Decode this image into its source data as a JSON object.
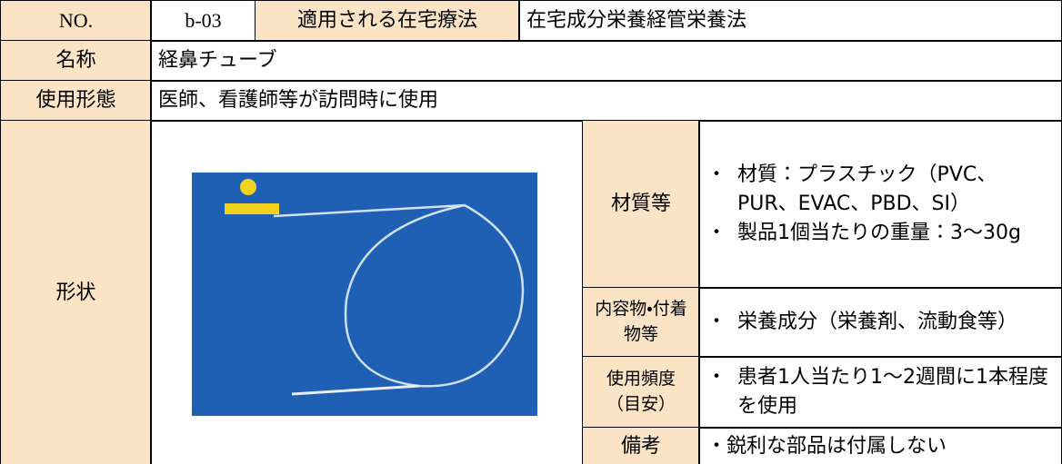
{
  "header": {
    "no_label": "NO.",
    "no": "b-03",
    "therapy_label": "適用される在宅療法",
    "therapy": "在宅成分栄養経管栄養法"
  },
  "rows": [
    {
      "label": "名称",
      "value": "経鼻チューブ"
    },
    {
      "label": "使用形態",
      "value": "医師、看護師等が訪問時に使用"
    }
  ],
  "shape": {
    "label": "形状",
    "details": [
      {
        "label": "材質等",
        "items": [
          "材質：プラスチック（PVC、PUR、EVAC、PBD、SI）",
          "製品1個当たりの重量：3～30g"
        ]
      },
      {
        "label": "内容物・付着物等",
        "items": [
          "栄養成分（栄養剤、流動食等）"
        ]
      },
      {
        "label": "使用頻度（目安）",
        "items": [
          "患者1人当たり1～2週間に1本程度を使用"
        ]
      },
      {
        "label": "備考",
        "items": [
          "鋭利な部品は付属しない"
        ]
      }
    ]
  }
}
